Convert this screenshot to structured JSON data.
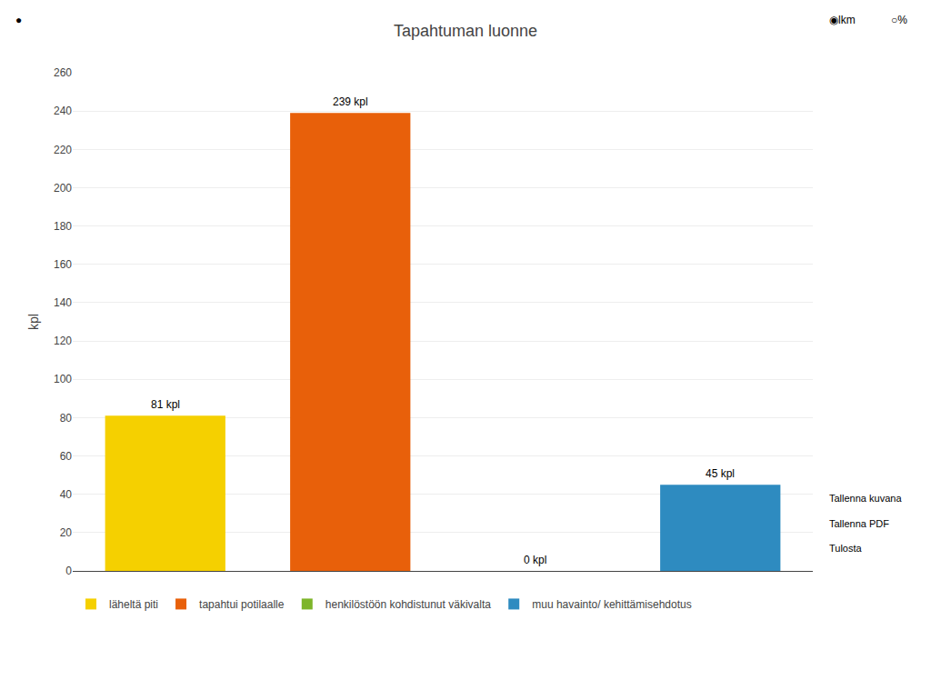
{
  "chart_data": {
    "type": "bar",
    "title": "Tapahtuman luonne",
    "categories": [
      "läheltä piti",
      "tapahtui potilaalle",
      "henkilöstöön kohdistunut väkivalta",
      "muu havainto/ kehittämisehdotus"
    ],
    "values": [
      81,
      239,
      0,
      45
    ],
    "value_labels": [
      "81 kpl",
      "239 kpl",
      "0 kpl",
      "45 kpl"
    ],
    "colors": [
      "#F5D000",
      "#E8600A",
      "#7DB52A",
      "#2E8BC0"
    ],
    "ylabel": "kpl",
    "ylim": [
      0,
      260
    ],
    "yticks": [
      0,
      20,
      40,
      60,
      80,
      100,
      120,
      140,
      160,
      180,
      200,
      220,
      240,
      260
    ],
    "grid": true,
    "legend": "bottom",
    "tick_labels": "y",
    "annotations": [
      "Tallenna kuvana",
      "Tallenna PDF",
      "Tulosta",
      "◉lkm",
      "○%",
      "●"
    ]
  }
}
